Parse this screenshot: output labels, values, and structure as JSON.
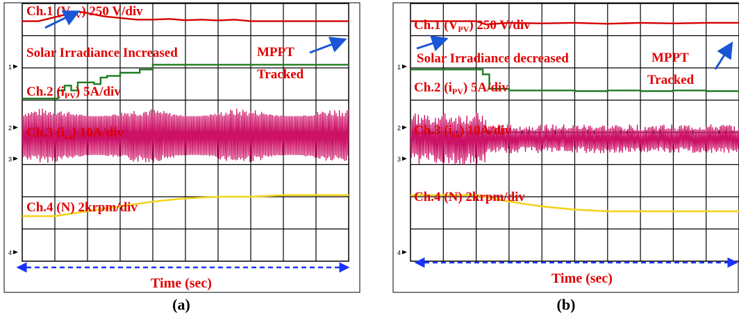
{
  "colors": {
    "v_pv": "#d40000",
    "i_pv": "#1f7a1f",
    "i_sa": "#cc1166",
    "speed": "#f2d31b",
    "annotation_text": "#e00000",
    "arrow": "#1a56d6",
    "time_arrow": "#1a33ff",
    "grid": "#000000",
    "frame": "#000000"
  },
  "chart_data": [
    {
      "type": "line",
      "panel_label": "(a)",
      "xlabel": "Time (sec)",
      "grid": true,
      "grid_divisions": {
        "x": 10,
        "y": 8
      },
      "channel_markers": [
        "1",
        "2",
        "3",
        "4"
      ],
      "annotations": [
        {
          "id": "event",
          "text": "Solar Irradiance Increased"
        },
        {
          "id": "mppt1",
          "text": "MPPT"
        },
        {
          "id": "mppt2",
          "text": "Tracked"
        }
      ],
      "series": [
        {
          "name": "Ch.1 (VPV) 250 V/div",
          "name_parts": {
            "pre": "Ch.1 (V",
            "sub": "PV",
            "post": ") 250 V/div"
          },
          "kind": "line",
          "x": [
            0,
            0.5,
            0.9,
            1.3,
            1.7,
            2.0,
            2.5,
            3.0,
            3.5,
            4.0,
            4.5,
            5.0,
            5.5,
            6.0,
            6.5,
            7.0,
            8.0,
            9.0,
            10.0
          ],
          "y": [
            7.45,
            7.45,
            7.55,
            7.65,
            7.75,
            7.7,
            7.6,
            7.55,
            7.5,
            7.5,
            7.52,
            7.48,
            7.5,
            7.47,
            7.5,
            7.45,
            7.45,
            7.45,
            7.45
          ]
        },
        {
          "name": "Ch.2 (iPV) 5A/div",
          "name_parts": {
            "pre": "Ch.2 (i",
            "sub": "PV",
            "post": ") 5A/div"
          },
          "kind": "step",
          "x": [
            0,
            0.9,
            1.1,
            1.3,
            1.5,
            1.7,
            2.2,
            2.4,
            2.6,
            3.0,
            3.6,
            4.0,
            10.0
          ],
          "y": [
            5.05,
            5.05,
            5.3,
            5.45,
            5.3,
            5.55,
            5.5,
            5.7,
            5.75,
            5.85,
            5.95,
            6.1,
            6.1
          ]
        },
        {
          "name": "Ch.3 (isa) 10A/div",
          "name_parts": {
            "pre": "Ch.3 (i",
            "sub": "sa",
            "post": ") 10A/div"
          },
          "kind": "envelope",
          "x": [
            0,
            10
          ],
          "center": 3.9,
          "amplitude": [
            0.6,
            0.85
          ]
        },
        {
          "name": "Ch.4 (N) 2krpm/div",
          "name_parts": {
            "pre": "Ch.4 (N) 2krpm/div",
            "sub": "",
            "post": ""
          },
          "kind": "line",
          "x": [
            0,
            1,
            2,
            3,
            4,
            5,
            6,
            7,
            8,
            9,
            10
          ],
          "y": [
            1.4,
            1.4,
            1.55,
            1.7,
            1.85,
            1.95,
            2.0,
            2.0,
            2.05,
            2.05,
            2.05
          ]
        }
      ]
    },
    {
      "type": "line",
      "panel_label": "(b)",
      "xlabel": "Time (sec)",
      "grid": true,
      "grid_divisions": {
        "x": 10,
        "y": 8
      },
      "channel_markers": [
        "1",
        "2",
        "3",
        "4"
      ],
      "annotations": [
        {
          "id": "event",
          "text": "Solar Irradiance decreased"
        },
        {
          "id": "mppt1",
          "text": "MPPT"
        },
        {
          "id": "mppt2",
          "text": "Tracked"
        }
      ],
      "series": [
        {
          "name": "Ch.1 (VPV) 250 V/div",
          "name_parts": {
            "pre": "Ch.1 (V",
            "sub": "PV",
            "post": ") 250 V/div"
          },
          "kind": "line",
          "x": [
            0,
            1,
            2,
            2.3,
            3,
            4,
            5,
            6,
            7,
            8,
            9,
            10
          ],
          "y": [
            7.45,
            7.45,
            7.45,
            7.35,
            7.4,
            7.38,
            7.4,
            7.37,
            7.4,
            7.38,
            7.4,
            7.4
          ]
        },
        {
          "name": "Ch.2 (iPV) 5A/div",
          "name_parts": {
            "pre": "Ch.2 (i",
            "sub": "PV",
            "post": ") 5A/div"
          },
          "kind": "step",
          "x": [
            0,
            2.0,
            2.2,
            2.4,
            3.0,
            4.0,
            5.0,
            6.0,
            7.0,
            8.0,
            9.0,
            10.0
          ],
          "y": [
            5.95,
            5.95,
            5.8,
            5.35,
            5.3,
            5.3,
            5.28,
            5.3,
            5.28,
            5.3,
            5.28,
            5.3
          ]
        },
        {
          "name": "Ch.3 (isa) 10A/div",
          "name_parts": {
            "pre": "Ch.3 (i",
            "sub": "sa",
            "post": ") 10A/div"
          },
          "kind": "envelope",
          "x": [
            0,
            2.3,
            10
          ],
          "center": 3.8,
          "amplitude": [
            0.8,
            0.45
          ]
        },
        {
          "name": "Ch.4 (N) 2krpm/div",
          "name_parts": {
            "pre": "Ch.4 (N) 2krpm/div",
            "sub": "",
            "post": ""
          },
          "kind": "line",
          "x": [
            0,
            1,
            2,
            3,
            4,
            5,
            6,
            7,
            8,
            9,
            10
          ],
          "y": [
            2.05,
            2.05,
            2.05,
            1.85,
            1.7,
            1.6,
            1.55,
            1.55,
            1.55,
            1.55,
            1.55
          ]
        }
      ]
    }
  ]
}
